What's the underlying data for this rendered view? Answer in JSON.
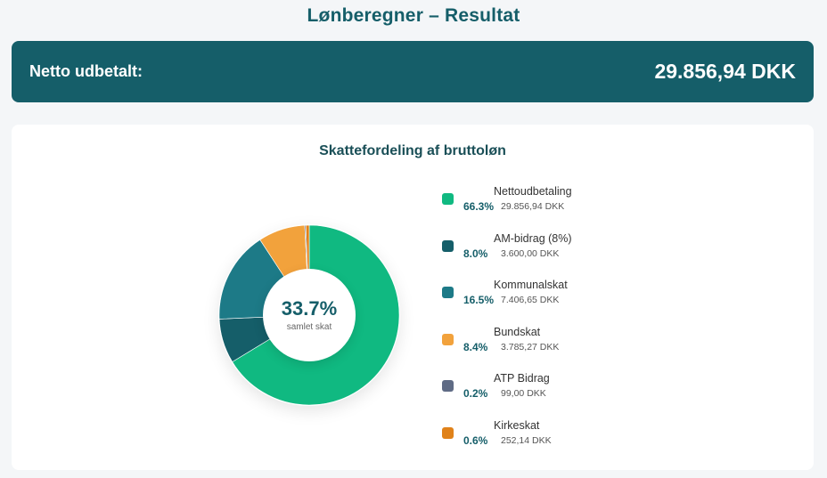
{
  "page": {
    "title": "Lønberegner – Resultat"
  },
  "net_banner": {
    "label": "Netto udbetalt:",
    "value": "29.856,94 DKK"
  },
  "chart_data": {
    "type": "pie",
    "title": "Skattefordeling af bruttoløn",
    "center_value": "33.7%",
    "center_label": "samlet skat",
    "slices": [
      {
        "name": "Nettoudbetaling",
        "value": 66.3,
        "pct_label": "66.3%",
        "amount": "29.856,94 DKK",
        "color": "#10b981"
      },
      {
        "name": "AM-bidrag (8%)",
        "value": 8.0,
        "pct_label": "8.0%",
        "amount": "3.600,00 DKK",
        "color": "#155e69"
      },
      {
        "name": "Kommunalskat",
        "value": 16.5,
        "pct_label": "16.5%",
        "amount": "7.406,65 DKK",
        "color": "#1d7a87"
      },
      {
        "name": "Bundskat",
        "value": 8.4,
        "pct_label": "8.4%",
        "amount": "3.785,27 DKK",
        "color": "#f2a23c"
      },
      {
        "name": "ATP Bidrag",
        "value": 0.2,
        "pct_label": "0.2%",
        "amount": "99,00 DKK",
        "color": "#5f6b85"
      },
      {
        "name": "Kirkeskat",
        "value": 0.6,
        "pct_label": "0.6%",
        "amount": "252,14 DKK",
        "color": "#e0821a"
      }
    ],
    "legend_position": "right"
  }
}
